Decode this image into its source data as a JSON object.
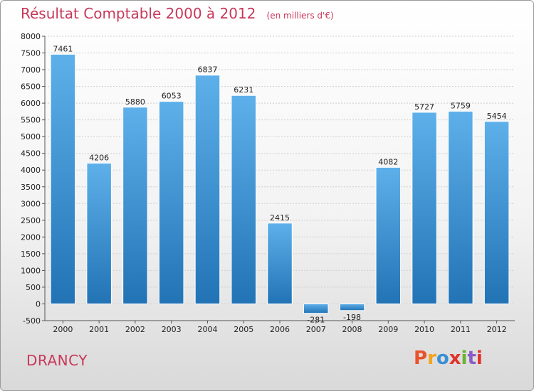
{
  "header": {
    "title": "Résultat Comptable 2000 à 2012",
    "subtitle": "(en milliers d'€)"
  },
  "footer": {
    "city": "DRANCY",
    "logo": "Proxiti",
    "logo_colors": [
      "#e8542a",
      "#f2a31b",
      "#3a8fd6",
      "#e0322b",
      "#6ab32f",
      "#8a5cc7",
      "#e0322b"
    ]
  },
  "colors": {
    "bar_top": "#5eb0ea",
    "bar_bottom": "#2273b5",
    "title": "#c8385a"
  },
  "chart_data": {
    "type": "bar",
    "title": "Résultat Comptable 2000 à 2012",
    "subtitle": "(en milliers d'€)",
    "categories": [
      "2000",
      "2001",
      "2002",
      "2003",
      "2004",
      "2005",
      "2006",
      "2007",
      "2008",
      "2009",
      "2010",
      "2011",
      "2012"
    ],
    "values": [
      7461,
      4206,
      5880,
      6053,
      6837,
      6231,
      2415,
      -281,
      -198,
      4082,
      5727,
      5759,
      5454
    ],
    "data_labels": [
      "7461",
      "4206",
      "5880",
      "6053",
      "6837",
      "6231",
      "2415",
      "-281",
      "-198",
      "4082",
      "5727",
      "5759",
      "5454"
    ],
    "yticks": [
      "-500",
      "0",
      "500",
      "1000",
      "1500",
      "2000",
      "2500",
      "3000",
      "3500",
      "4000",
      "4500",
      "5000",
      "5500",
      "6000",
      "6500",
      "7000",
      "7500",
      "8000"
    ],
    "ylim": [
      -500,
      8000
    ],
    "grid": "horizontal",
    "xlabel": "",
    "ylabel": ""
  }
}
